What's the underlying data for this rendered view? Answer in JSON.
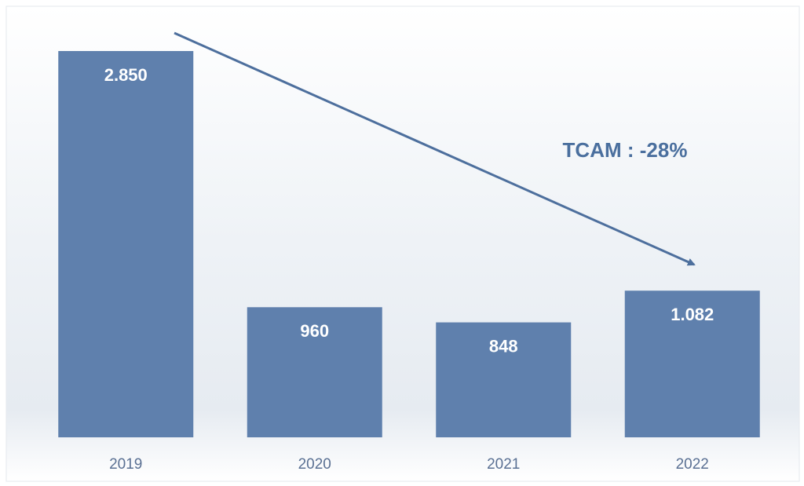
{
  "chart_data": {
    "type": "bar",
    "categories": [
      "2019",
      "2020",
      "2021",
      "2022"
    ],
    "values": [
      2850,
      960,
      848,
      1082
    ],
    "value_labels": [
      "2.850",
      "960",
      "848",
      "1.082"
    ],
    "color": "#5f80ad",
    "annotation": "TCAM : -28%"
  }
}
